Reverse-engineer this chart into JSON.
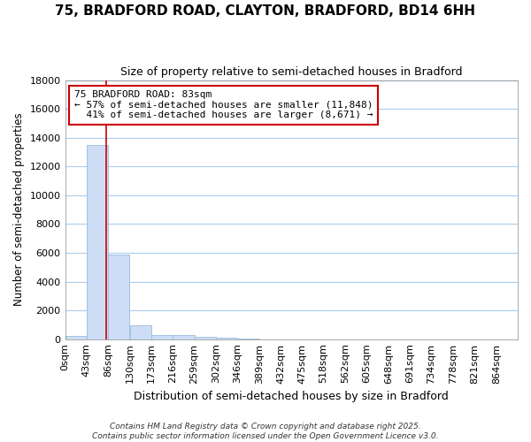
{
  "title": "75, BRADFORD ROAD, CLAYTON, BRADFORD, BD14 6HH",
  "subtitle": "Size of property relative to semi-detached houses in Bradford",
  "xlabel": "Distribution of semi-detached houses by size in Bradford",
  "ylabel": "Number of semi-detached properties",
  "bin_labels": [
    "0sqm",
    "43sqm",
    "86sqm",
    "130sqm",
    "173sqm",
    "216sqm",
    "259sqm",
    "302sqm",
    "346sqm",
    "389sqm",
    "432sqm",
    "475sqm",
    "518sqm",
    "562sqm",
    "605sqm",
    "648sqm",
    "691sqm",
    "734sqm",
    "778sqm",
    "821sqm",
    "864sqm"
  ],
  "bin_edges": [
    0,
    43,
    86,
    130,
    173,
    216,
    259,
    302,
    346,
    389,
    432,
    475,
    518,
    562,
    605,
    648,
    691,
    734,
    778,
    821,
    864
  ],
  "bar_heights": [
    200,
    13500,
    5900,
    950,
    300,
    300,
    150,
    100,
    20,
    10,
    5,
    3,
    2,
    1,
    1,
    0,
    0,
    0,
    0,
    0
  ],
  "bar_color": "#ccddf5",
  "bar_edge_color": "#99bbdd",
  "property_size": 83,
  "property_line_color": "#cc0000",
  "annotation_line1": "75 BRADFORD ROAD: 83sqm",
  "annotation_line2": "← 57% of semi-detached houses are smaller (11,848)",
  "annotation_line3": "  41% of semi-detached houses are larger (8,671) →",
  "annotation_box_color": "#ffffff",
  "annotation_box_edge": "#cc0000",
  "ylim": [
    0,
    18000
  ],
  "yticks": [
    0,
    2000,
    4000,
    6000,
    8000,
    10000,
    12000,
    14000,
    16000,
    18000
  ],
  "background_color": "#ffffff",
  "plot_bg_color": "#ffffff",
  "grid_color": "#aaccee",
  "footer_line1": "Contains HM Land Registry data © Crown copyright and database right 2025.",
  "footer_line2": "Contains public sector information licensed under the Open Government Licence v3.0."
}
